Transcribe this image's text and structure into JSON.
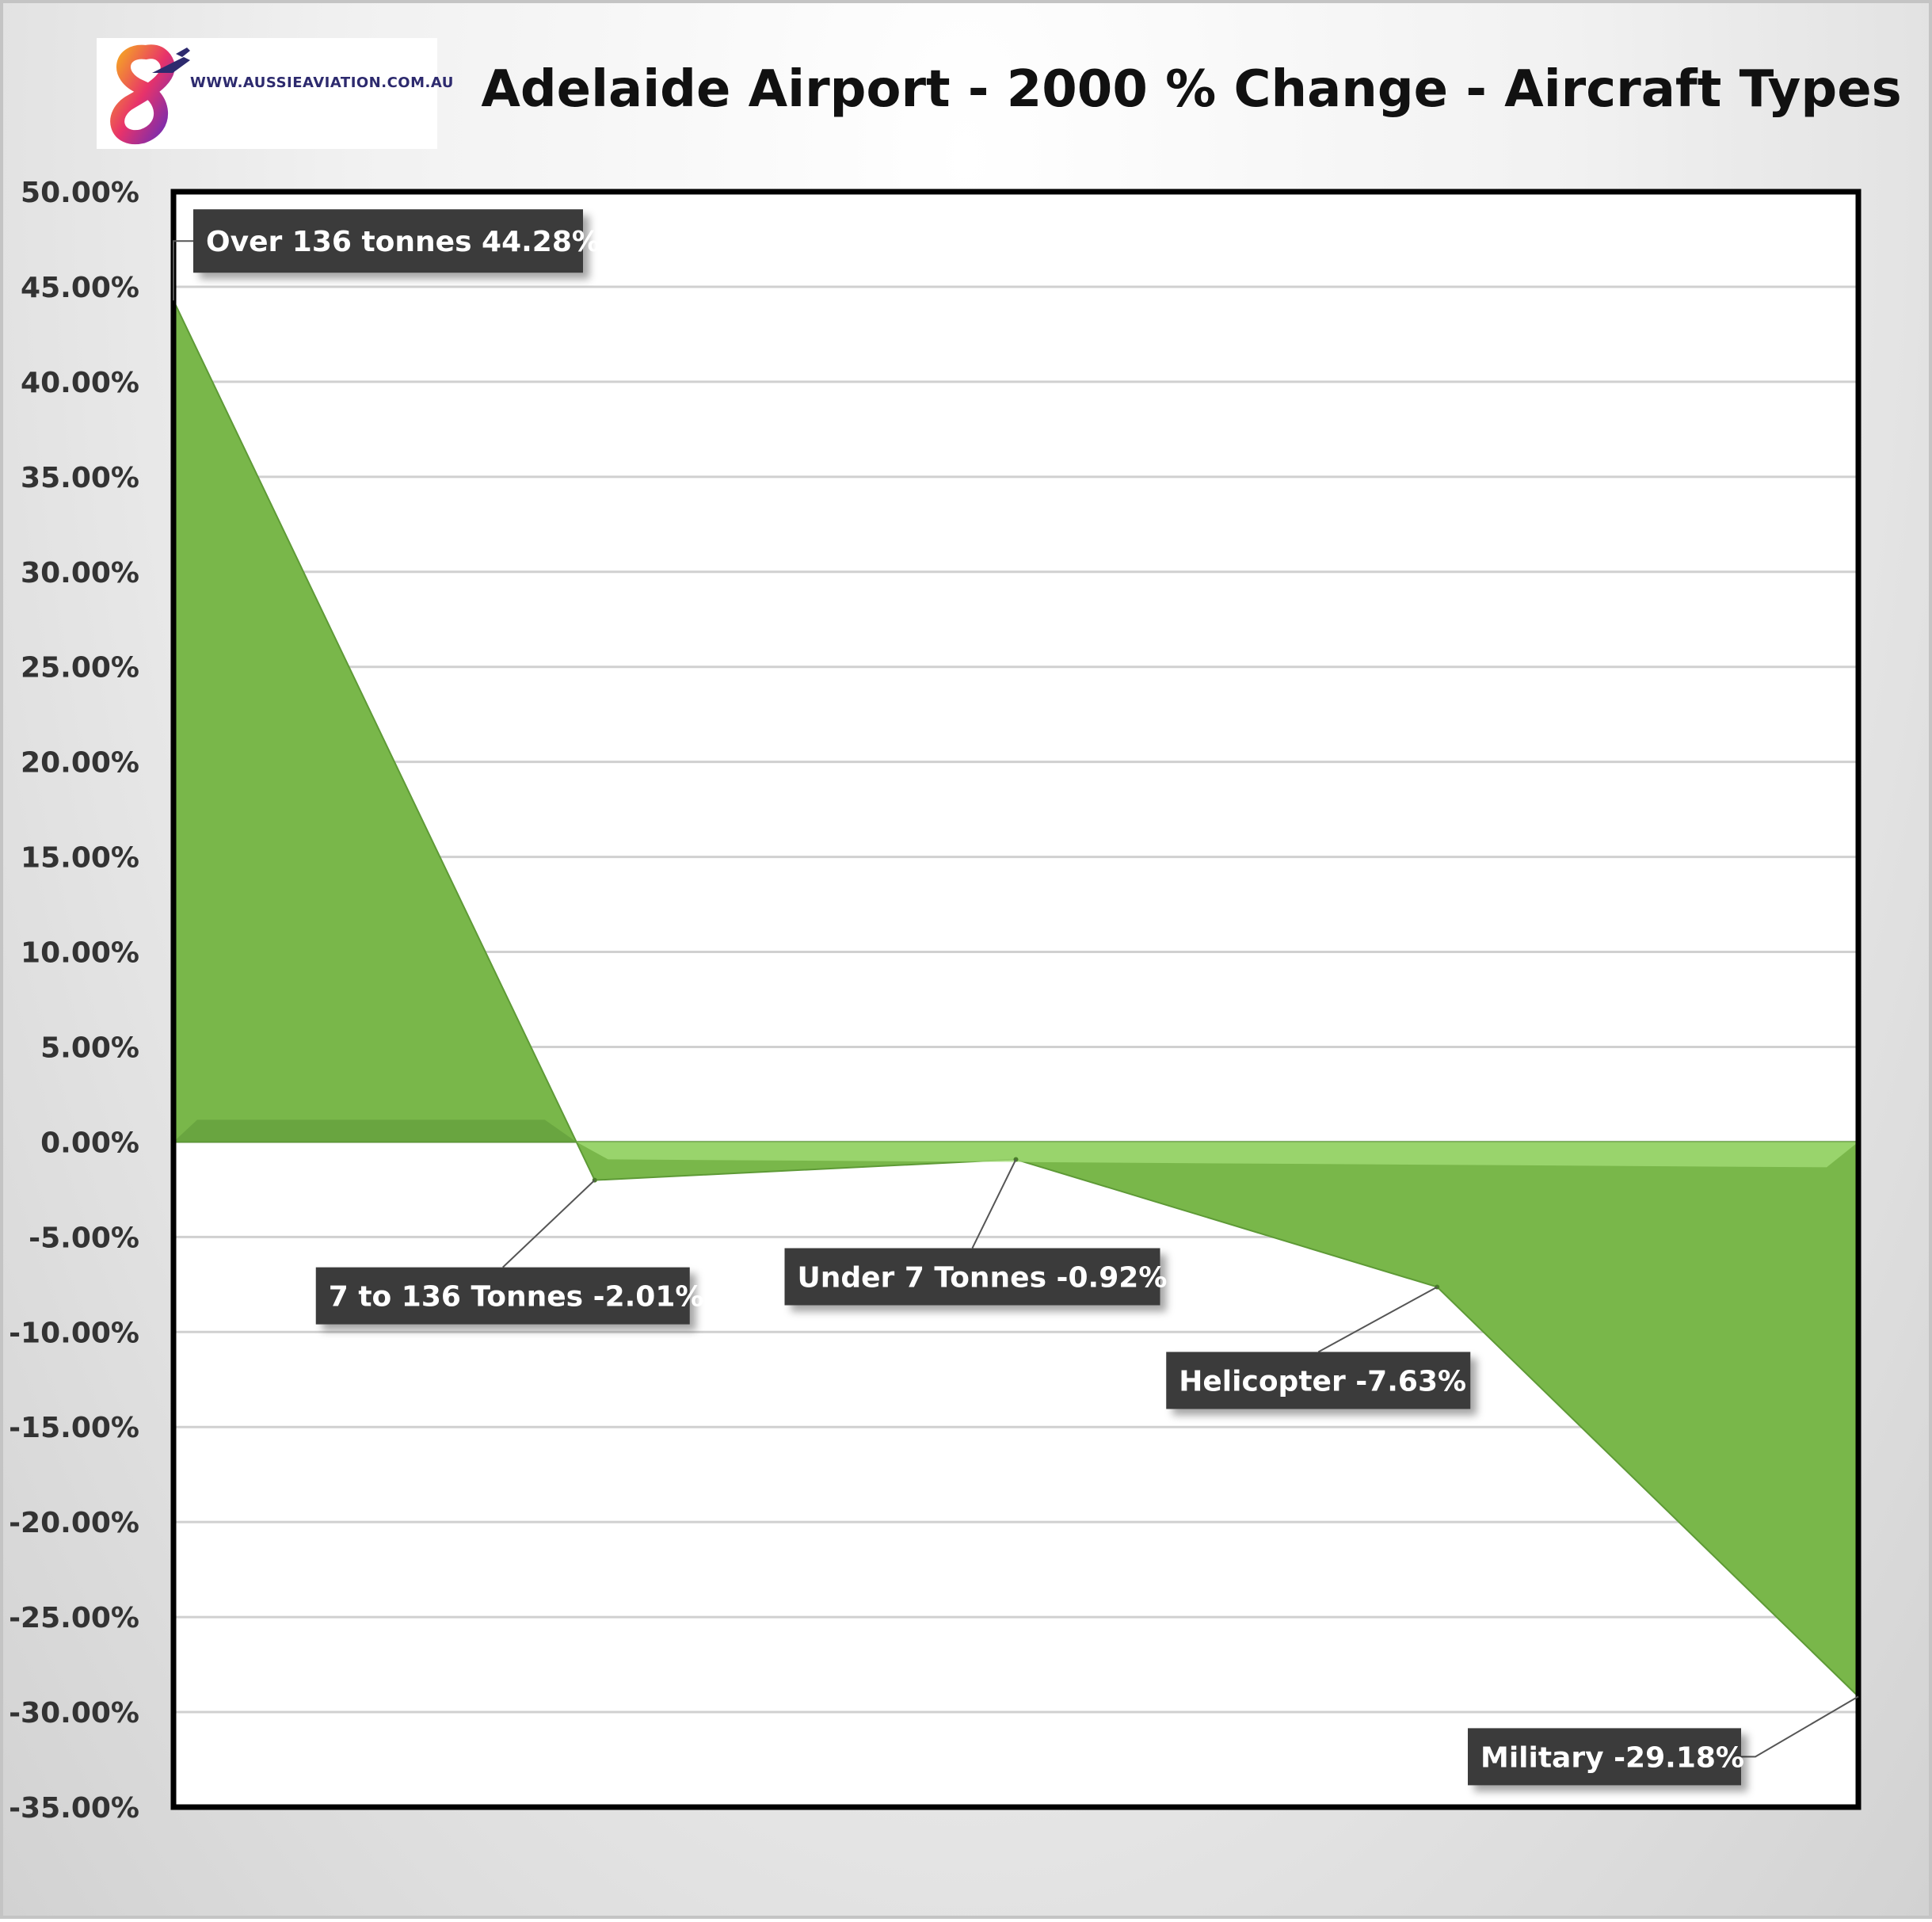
{
  "logo": {
    "url_text": "WWW.AUSSIEAVIATION.COM.AU",
    "colors": [
      "#f5a623",
      "#e8336a",
      "#6a2bb8",
      "#2d2a6e"
    ]
  },
  "chart_data": {
    "type": "area",
    "title": "Adelaide Airport - 2000 % Change - Aircraft Types",
    "xlabel": "",
    "ylabel": "",
    "ylim": [
      -35,
      50
    ],
    "y_tick_step": 5,
    "y_tick_format": "percent_2dp",
    "grid": true,
    "legend": "none",
    "fill_color": "#79b74a",
    "categories": [
      "Over 136 tonnes",
      "7 to 136 Tonnes",
      "Under 7 Tonnes",
      "Helicopter",
      "Military"
    ],
    "values": [
      44.28,
      -2.01,
      -0.92,
      -7.63,
      -29.18
    ],
    "data_labels": [
      "Over 136 tonnes 44.28%",
      "7 to 136 Tonnes -2.01%",
      "Under 7 Tonnes -0.92%",
      "Helicopter  -7.63%",
      "Military -29.18%"
    ]
  }
}
